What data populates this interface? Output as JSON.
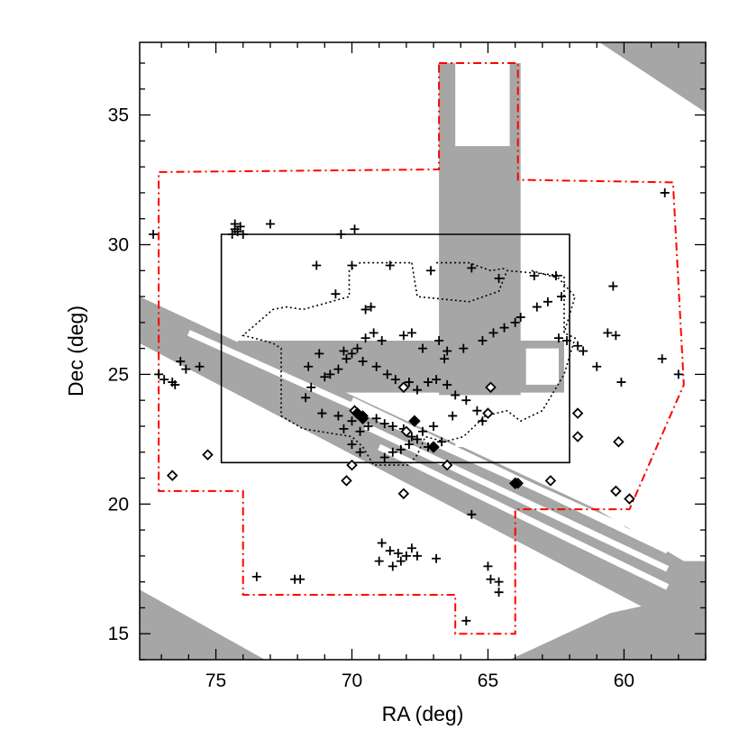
{
  "chart_data": {
    "type": "scatter",
    "xlabel": "RA (deg)",
    "ylabel": "Dec (deg)",
    "xlim": [
      77.8,
      57.0
    ],
    "ylim": [
      14.0,
      37.8
    ],
    "x_reversed": true,
    "grid": false,
    "legend": "none",
    "xticks": [
      75,
      70,
      65,
      60
    ],
    "yticks": [
      15,
      20,
      25,
      30,
      35
    ],
    "colors": {
      "coverage": "#a6a6a6",
      "outer_boundary": "#ff0000",
      "box": "#000000",
      "markers": "#000000"
    },
    "coverage_regions": [
      [
        [
          77.8,
          28.0
        ],
        [
          77.8,
          26.2
        ],
        [
          57.8,
          15.2
        ],
        [
          57.0,
          15.2
        ],
        [
          57.0,
          17.8
        ],
        [
          57.8,
          17.8
        ],
        [
          61.0,
          19.8
        ]
      ],
      [
        [
          77.8,
          16.7
        ],
        [
          77.8,
          14.0
        ],
        [
          73.2,
          14.0
        ]
      ],
      [
        [
          67.5,
          14.0
        ],
        [
          64.2,
          14.0
        ],
        [
          60.5,
          15.8
        ],
        [
          57.0,
          16.6
        ],
        [
          57.0,
          14.0
        ]
      ],
      [
        [
          66.8,
          37.0
        ],
        [
          63.8,
          37.0
        ],
        [
          63.8,
          24.2
        ],
        [
          66.8,
          24.2
        ]
      ],
      [
        [
          74.2,
          26.3
        ],
        [
          62.2,
          26.3
        ],
        [
          62.2,
          24.3
        ],
        [
          74.2,
          24.3
        ]
      ],
      [
        [
          60.9,
          37.8
        ],
        [
          57.0,
          37.8
        ],
        [
          57.0,
          35.1
        ]
      ]
    ],
    "coverage_gaps": [
      [
        [
          66.2,
          37.0
        ],
        [
          64.2,
          37.0
        ],
        [
          64.2,
          33.8
        ],
        [
          66.2,
          33.8
        ]
      ],
      [
        [
          66.2,
          24.0
        ],
        [
          64.2,
          24.0
        ],
        [
          64.2,
          22.2
        ],
        [
          66.2,
          22.2
        ]
      ],
      [
        [
          63.6,
          26.0
        ],
        [
          62.4,
          26.0
        ],
        [
          62.4,
          24.6
        ],
        [
          63.6,
          24.6
        ]
      ]
    ],
    "coverage_stripes": [
      [
        [
          76.0,
          26.6
        ],
        [
          60.0,
          19.1
        ]
      ],
      [
        [
          70.0,
          24.0
        ],
        [
          58.4,
          18.2
        ]
      ],
      [
        [
          69.5,
          23.0
        ],
        [
          58.4,
          17.5
        ]
      ],
      [
        [
          69.0,
          22.2
        ],
        [
          58.4,
          16.8
        ]
      ]
    ],
    "outer_boundary": [
      [
        66.8,
        32.9
      ],
      [
        63.9,
        32.9
      ],
      [
        63.9,
        37.0
      ],
      [
        66.8,
        37.0
      ]
    ],
    "outer_boundary_polygon": [
      [
        66.8,
        37.0
      ],
      [
        63.9,
        37.0
      ],
      [
        63.9,
        32.5
      ],
      [
        58.2,
        32.4
      ],
      [
        57.8,
        24.6
      ],
      [
        59.8,
        19.8
      ],
      [
        64.0,
        19.8
      ],
      [
        64.0,
        15.0
      ],
      [
        66.2,
        15.0
      ],
      [
        66.2,
        16.5
      ],
      [
        74.0,
        16.5
      ],
      [
        74.0,
        20.5
      ],
      [
        77.1,
        20.5
      ],
      [
        77.1,
        32.8
      ],
      [
        66.8,
        32.9
      ]
    ],
    "box": [
      [
        74.8,
        30.4
      ],
      [
        62.0,
        30.4
      ],
      [
        62.0,
        21.6
      ],
      [
        74.8,
        21.6
      ]
    ],
    "dotted_regions": [
      [
        [
          67.8,
          29.3
        ],
        [
          67.6,
          28.0
        ],
        [
          65.7,
          27.8
        ],
        [
          64.6,
          28.2
        ],
        [
          64.3,
          29.0
        ],
        [
          62.2,
          28.8
        ],
        [
          62.2,
          26.6
        ],
        [
          61.8,
          26.4
        ],
        [
          62.2,
          25.0
        ],
        [
          63.0,
          23.6
        ],
        [
          63.8,
          23.2
        ],
        [
          64.3,
          23.6
        ],
        [
          65.1,
          23.4
        ],
        [
          65.9,
          22.6
        ],
        [
          66.6,
          22.4
        ],
        [
          67.3,
          22.6
        ],
        [
          67.6,
          21.9
        ],
        [
          67.9,
          21.5
        ],
        [
          69.2,
          21.5
        ],
        [
          69.6,
          22.2
        ],
        [
          70.0,
          22.6
        ],
        [
          71.8,
          22.9
        ],
        [
          72.6,
          23.4
        ],
        [
          72.6,
          26.0
        ],
        [
          72.9,
          26.2
        ],
        [
          73.6,
          26.4
        ],
        [
          74.0,
          26.5
        ],
        [
          72.9,
          27.5
        ],
        [
          72.4,
          27.6
        ],
        [
          71.8,
          27.5
        ],
        [
          70.1,
          28.0
        ],
        [
          70.1,
          29.0
        ],
        [
          69.7,
          29.3
        ],
        [
          67.8,
          29.3
        ]
      ],
      [
        [
          66.9,
          29.3
        ],
        [
          65.7,
          29.3
        ],
        [
          64.9,
          29.0
        ],
        [
          64.3,
          29.1
        ]
      ],
      [
        [
          63.4,
          29.0
        ],
        [
          62.4,
          28.7
        ],
        [
          61.8,
          28.0
        ],
        [
          62.2,
          26.6
        ]
      ]
    ],
    "plus_points": [
      [
        77.3,
        30.4
      ],
      [
        74.4,
        30.4
      ],
      [
        74.3,
        30.6
      ],
      [
        74.3,
        30.8
      ],
      [
        74.2,
        30.5
      ],
      [
        74.0,
        30.4
      ],
      [
        74.1,
        30.7
      ],
      [
        73.0,
        30.8
      ],
      [
        70.4,
        30.4
      ],
      [
        69.9,
        30.6
      ],
      [
        71.3,
        29.2
      ],
      [
        70.0,
        29.2
      ],
      [
        68.6,
        29.2
      ],
      [
        67.1,
        29.0
      ],
      [
        65.6,
        29.1
      ],
      [
        64.6,
        28.7
      ],
      [
        63.3,
        28.8
      ],
      [
        62.5,
        28.8
      ],
      [
        60.4,
        28.4
      ],
      [
        58.5,
        32.0
      ],
      [
        70.6,
        28.1
      ],
      [
        69.3,
        27.6
      ],
      [
        69.5,
        27.5
      ],
      [
        67.8,
        26.6
      ],
      [
        68.1,
        26.5
      ],
      [
        67.4,
        26.0
      ],
      [
        66.6,
        25.6
      ],
      [
        66.5,
        25.9
      ],
      [
        66.8,
        26.3
      ],
      [
        65.9,
        26.0
      ],
      [
        65.2,
        26.3
      ],
      [
        64.8,
        26.6
      ],
      [
        64.4,
        26.8
      ],
      [
        64.0,
        27.0
      ],
      [
        63.8,
        27.2
      ],
      [
        63.2,
        27.6
      ],
      [
        62.8,
        27.8
      ],
      [
        62.3,
        28.0
      ],
      [
        62.4,
        26.4
      ],
      [
        62.1,
        26.3
      ],
      [
        61.7,
        26.1
      ],
      [
        61.5,
        25.9
      ],
      [
        61.0,
        25.3
      ],
      [
        60.1,
        24.7
      ],
      [
        60.3,
        26.5
      ],
      [
        60.6,
        26.6
      ],
      [
        58.6,
        25.6
      ],
      [
        58.0,
        25.0
      ],
      [
        68.9,
        26.3
      ],
      [
        69.2,
        26.6
      ],
      [
        69.5,
        26.4
      ],
      [
        69.8,
        26.0
      ],
      [
        70.0,
        25.8
      ],
      [
        70.2,
        25.6
      ],
      [
        70.5,
        25.2
      ],
      [
        70.8,
        25.0
      ],
      [
        71.0,
        24.9
      ],
      [
        71.5,
        24.5
      ],
      [
        71.6,
        25.3
      ],
      [
        71.2,
        25.8
      ],
      [
        70.3,
        25.9
      ],
      [
        69.6,
        25.5
      ],
      [
        69.1,
        25.3
      ],
      [
        68.7,
        25.0
      ],
      [
        68.4,
        24.8
      ],
      [
        68.1,
        24.5
      ],
      [
        67.9,
        24.7
      ],
      [
        67.6,
        24.4
      ],
      [
        67.2,
        24.7
      ],
      [
        66.9,
        24.8
      ],
      [
        66.5,
        24.6
      ],
      [
        66.2,
        24.2
      ],
      [
        65.8,
        24.0
      ],
      [
        65.4,
        23.6
      ],
      [
        65.2,
        23.2
      ],
      [
        66.3,
        23.4
      ],
      [
        67.0,
        23.0
      ],
      [
        67.4,
        22.8
      ],
      [
        67.8,
        22.6
      ],
      [
        68.1,
        22.9
      ],
      [
        68.5,
        23.0
      ],
      [
        68.8,
        23.1
      ],
      [
        69.1,
        23.3
      ],
      [
        69.4,
        23.0
      ],
      [
        69.7,
        22.8
      ],
      [
        70.0,
        23.2
      ],
      [
        70.5,
        23.4
      ],
      [
        71.1,
        23.5
      ],
      [
        71.7,
        24.1
      ],
      [
        70.3,
        22.9
      ],
      [
        70.0,
        22.3
      ],
      [
        69.7,
        22.0
      ],
      [
        68.8,
        21.8
      ],
      [
        68.5,
        22.0
      ],
      [
        68.2,
        22.1
      ],
      [
        67.9,
        22.3
      ],
      [
        67.6,
        22.5
      ],
      [
        67.2,
        22.2
      ],
      [
        66.7,
        22.4
      ],
      [
        68.9,
        18.5
      ],
      [
        68.6,
        18.2
      ],
      [
        68.3,
        18.1
      ],
      [
        68.0,
        18.0
      ],
      [
        67.8,
        18.3
      ],
      [
        67.6,
        18.0
      ],
      [
        68.2,
        17.8
      ],
      [
        68.5,
        17.6
      ],
      [
        69.0,
        17.8
      ],
      [
        66.9,
        17.9
      ],
      [
        65.0,
        17.6
      ],
      [
        64.6,
        17.0
      ],
      [
        64.9,
        17.1
      ],
      [
        64.6,
        16.6
      ],
      [
        65.6,
        19.6
      ],
      [
        65.8,
        15.5
      ],
      [
        73.5,
        17.2
      ],
      [
        72.1,
        17.1
      ],
      [
        71.9,
        17.1
      ],
      [
        76.5,
        24.6
      ],
      [
        76.6,
        24.7
      ],
      [
        76.9,
        24.8
      ],
      [
        77.1,
        25.0
      ],
      [
        76.3,
        25.5
      ],
      [
        76.1,
        25.2
      ],
      [
        75.6,
        25.3
      ]
    ],
    "diamond_points": [
      [
        76.6,
        21.1
      ],
      [
        75.3,
        21.9
      ],
      [
        70.0,
        21.5
      ],
      [
        70.2,
        20.9
      ],
      [
        68.1,
        20.4
      ],
      [
        66.5,
        21.5
      ],
      [
        68.0,
        22.8
      ],
      [
        67.0,
        22.2
      ],
      [
        68.1,
        24.5
      ],
      [
        64.9,
        24.5
      ],
      [
        65.0,
        23.5
      ],
      [
        63.9,
        20.8
      ],
      [
        62.7,
        20.9
      ],
      [
        61.7,
        23.5
      ],
      [
        61.7,
        22.6
      ],
      [
        60.2,
        22.4
      ],
      [
        60.3,
        20.5
      ],
      [
        59.8,
        20.2
      ],
      [
        69.9,
        23.6
      ],
      [
        69.6,
        23.4
      ]
    ],
    "filled_diamond_points": [
      [
        69.8,
        23.5
      ],
      [
        69.6,
        23.3
      ],
      [
        67.7,
        23.2
      ],
      [
        67.0,
        22.2
      ],
      [
        64.0,
        20.8
      ]
    ]
  }
}
